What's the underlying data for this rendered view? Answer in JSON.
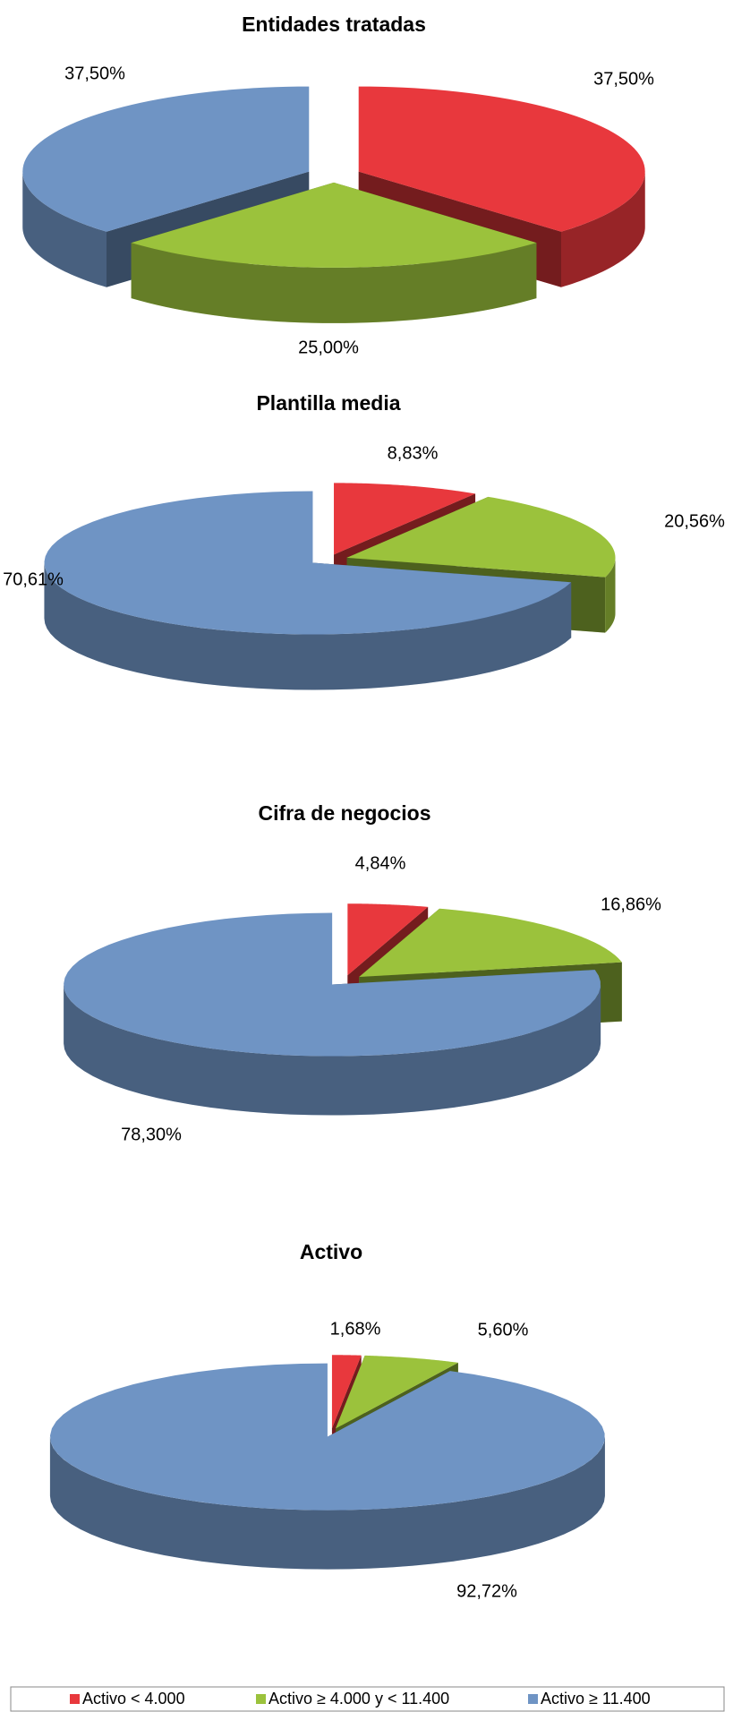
{
  "chart_data": [
    {
      "type": "pie",
      "title": "Entidades tratadas",
      "values": [
        37.5,
        25,
        37.5
      ],
      "value_labels": [
        "37,50%",
        "25,00%",
        "37,50%"
      ]
    },
    {
      "type": "pie",
      "title": "Plantilla media",
      "values": [
        8.83,
        20.56,
        70.61
      ],
      "value_labels": [
        "8,83%",
        "20,56%",
        "70,61%"
      ]
    },
    {
      "type": "pie",
      "title": "Cifra de negocios",
      "values": [
        4.84,
        16.86,
        78.3
      ],
      "value_labels": [
        "4,84%",
        "16,86%",
        "78,30%"
      ]
    },
    {
      "type": "pie",
      "title": "Activo",
      "values": [
        1.68,
        5.6,
        92.72
      ],
      "value_labels": [
        "1,68%",
        "5,60%",
        "92,72%"
      ]
    }
  ],
  "legend": {
    "labels": [
      "Activo < 4.000",
      "Activo ≥ 4.000 y < 11.400",
      "Activo ≥ 11.400"
    ],
    "colors": [
      "#e8383d",
      "#9bc23c",
      "#6f94c4"
    ]
  }
}
